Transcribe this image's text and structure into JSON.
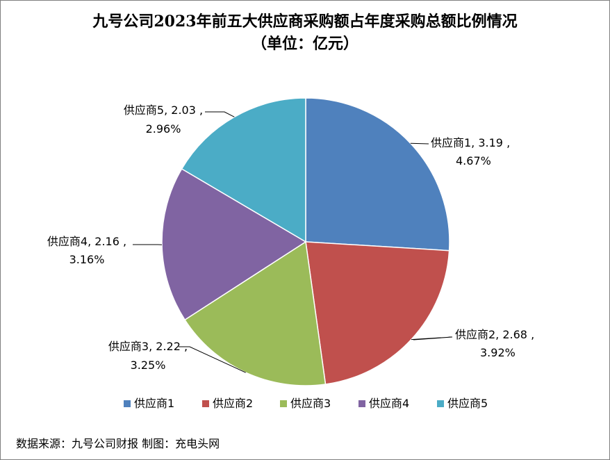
{
  "chart_data": {
    "type": "pie",
    "title": "九号公司2023年前五大供应商采购额占年度采购总额比例情况",
    "subtitle": "（单位：亿元）",
    "categories": [
      "供应商1",
      "供应商2",
      "供应商3",
      "供应商4",
      "供应商5"
    ],
    "values": [
      3.19,
      2.68,
      2.22,
      2.16,
      2.03
    ],
    "percentages": [
      "4.67%",
      "3.92%",
      "3.25%",
      "3.16%",
      "2.96%"
    ],
    "value_labels": [
      "3.19",
      "2.68",
      "2.22",
      "2.16",
      "2.03"
    ],
    "colors": [
      "#4F81BD",
      "#C0504D",
      "#9BBB59",
      "#8064A2",
      "#4BACC6"
    ],
    "legend_position": "bottom"
  },
  "source": "数据来源：九号公司财报  制图：充电头网"
}
